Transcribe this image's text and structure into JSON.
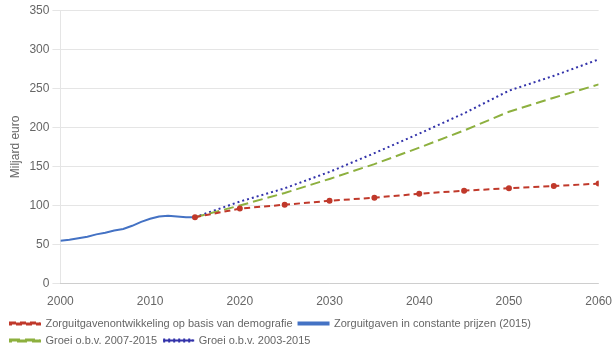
{
  "chart_data": {
    "type": "line",
    "ylabel": "Miljard euro",
    "xlim": [
      2000,
      2060
    ],
    "ylim": [
      0,
      350
    ],
    "xticks": [
      2000,
      2010,
      2020,
      2030,
      2040,
      2050,
      2060
    ],
    "yticks": [
      0,
      50,
      100,
      150,
      200,
      250,
      300,
      350
    ],
    "grid": "y",
    "legend": "bottom",
    "series": [
      {
        "name": "Zorguitgavenontwikkeling op basis van demografie",
        "color": "#c0392b",
        "line_style": "dashed",
        "marker": "dot",
        "x": [
          2015,
          2020,
          2025,
          2030,
          2035,
          2040,
          2045,
          2050,
          2055,
          2060
        ],
        "values": [
          85,
          96,
          101,
          106,
          110,
          115,
          119,
          122,
          125,
          128
        ]
      },
      {
        "name": "Zorguitgaven in constante prijzen (2015)",
        "color": "#4472c4",
        "line_style": "solid",
        "marker": "none",
        "x": [
          2000,
          2001,
          2002,
          2003,
          2004,
          2005,
          2006,
          2007,
          2008,
          2009,
          2010,
          2011,
          2012,
          2013,
          2014,
          2015
        ],
        "values": [
          55,
          56,
          58,
          60,
          63,
          65,
          68,
          70,
          74,
          79,
          83,
          86,
          87,
          86,
          85,
          85
        ]
      },
      {
        "name": "Groei o.b.v. 2007-2015",
        "color": "#8db03f",
        "line_style": "long_dashed",
        "marker": "none",
        "x": [
          2015,
          2020,
          2025,
          2030,
          2035,
          2040,
          2045,
          2050,
          2055,
          2060
        ],
        "values": [
          85,
          100,
          116,
          134,
          153,
          174,
          196,
          220,
          238,
          255
        ]
      },
      {
        "name": "Groei o.b.v. 2003-2015",
        "color": "#3333aa",
        "line_style": "dotted",
        "marker": "none",
        "x": [
          2015,
          2020,
          2025,
          2030,
          2035,
          2040,
          2045,
          2050,
          2055,
          2060
        ],
        "values": [
          85,
          105,
          122,
          143,
          167,
          192,
          218,
          247,
          266,
          287
        ]
      }
    ]
  }
}
